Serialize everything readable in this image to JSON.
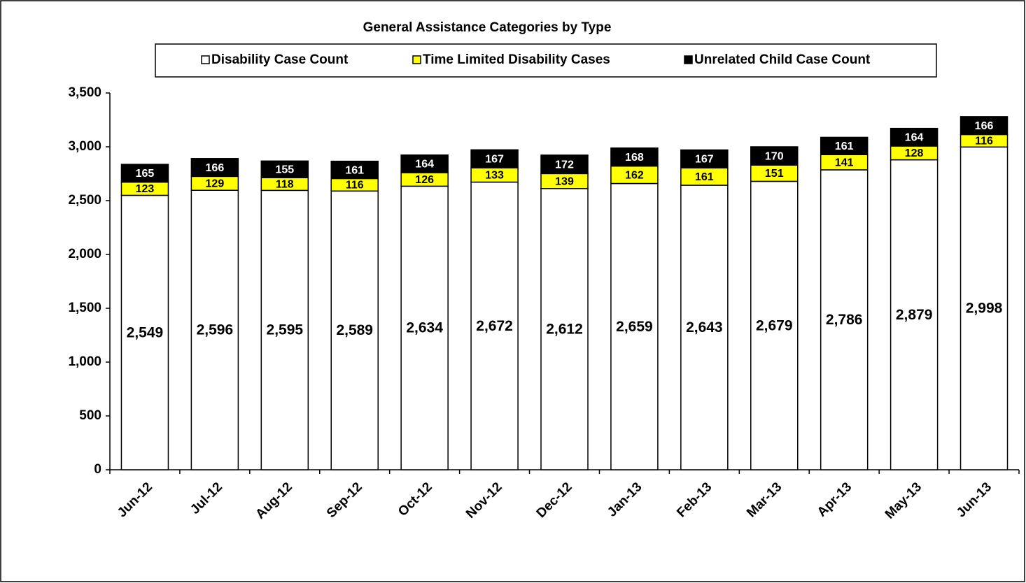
{
  "chart_data": {
    "type": "stacked_bar",
    "title": "General Assistance Categories by Type",
    "categories": [
      "Jun-12",
      "Jul-12",
      "Aug-12",
      "Sep-12",
      "Oct-12",
      "Nov-12",
      "Dec-12",
      "Jan-13",
      "Feb-13",
      "Mar-13",
      "Apr-13",
      "May-13",
      "Jun-13"
    ],
    "series": [
      {
        "name": "Disability Case Count",
        "color": "#ffffff",
        "values": [
          2549,
          2596,
          2595,
          2589,
          2634,
          2672,
          2612,
          2659,
          2643,
          2679,
          2786,
          2879,
          2998
        ],
        "value_labels": [
          "2,549",
          "2,596",
          "2,595",
          "2,589",
          "2,634",
          "2,672",
          "2,612",
          "2,659",
          "2,643",
          "2,679",
          "2,786",
          "2,879",
          "2,998"
        ]
      },
      {
        "name": "Time Limited Disability Cases",
        "color": "#ffff00",
        "values": [
          123,
          129,
          118,
          116,
          126,
          133,
          139,
          162,
          161,
          151,
          141,
          128,
          116
        ]
      },
      {
        "name": "Unrelated Child Case Count",
        "color": "#000000",
        "values": [
          165,
          166,
          155,
          161,
          164,
          167,
          172,
          168,
          167,
          170,
          161,
          164,
          166
        ]
      }
    ],
    "ylim": [
      0,
      3500
    ],
    "yticks": [
      0,
      500,
      {
        "value": 1000,
        "label": "1,000"
      },
      {
        "value": 1500,
        "label": "1,500"
      },
      {
        "value": 2000,
        "label": "2,000"
      },
      {
        "value": 2500,
        "label": "2,500"
      },
      {
        "value": 3000,
        "label": "3,000"
      },
      {
        "value": 3500,
        "label": "3,500"
      }
    ],
    "legend": "top",
    "grid": false
  }
}
